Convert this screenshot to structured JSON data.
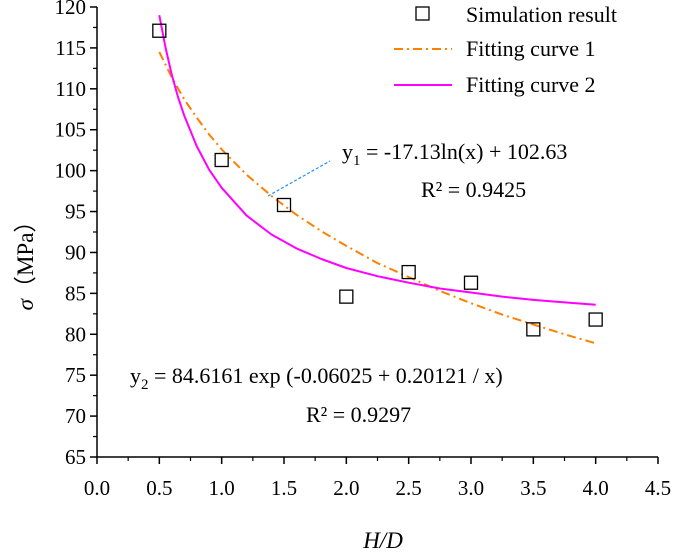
{
  "chart_data": {
    "type": "scatter",
    "title": "",
    "xlabel": "H/D",
    "ylabel": {
      "symbol": "σ",
      "unit": "（MPa）"
    },
    "xlim": [
      0.0,
      4.5
    ],
    "ylim": [
      65,
      120
    ],
    "xticks": [
      "0.0",
      "0.5",
      "1.0",
      "1.5",
      "2.0",
      "2.5",
      "3.0",
      "3.5",
      "4.0",
      "4.5"
    ],
    "yticks": [
      "65",
      "70",
      "75",
      "80",
      "85",
      "90",
      "95",
      "100",
      "105",
      "110",
      "115",
      "120"
    ],
    "grid": false,
    "legend_position": "top-right",
    "series": [
      {
        "name": "Simulation result",
        "kind": "markers",
        "marker": "open-square",
        "color": "#000000",
        "x": [
          0.5,
          1.0,
          1.5,
          2.0,
          2.5,
          3.0,
          3.5,
          4.0
        ],
        "y": [
          117.1,
          101.3,
          95.8,
          84.6,
          87.6,
          86.3,
          80.6,
          81.8
        ]
      },
      {
        "name": "Fitting curve 1",
        "kind": "line",
        "style": "dash-dot",
        "color": "#FF8000",
        "x": [
          0.5,
          0.6,
          0.7,
          0.8,
          0.9,
          1.0,
          1.2,
          1.4,
          1.6,
          1.8,
          2.0,
          2.25,
          2.5,
          2.75,
          3.0,
          3.25,
          3.5,
          3.75,
          4.0
        ],
        "y": [
          114.5,
          111.4,
          108.7,
          106.5,
          104.4,
          102.6,
          99.5,
          96.9,
          94.6,
          92.6,
          90.8,
          88.7,
          87.0,
          85.3,
          83.8,
          82.4,
          81.2,
          80.0,
          78.9
        ]
      },
      {
        "name": "Fitting curve 2",
        "kind": "line",
        "style": "solid",
        "color": "#FF00FF",
        "x": [
          0.5,
          0.55,
          0.6,
          0.65,
          0.7,
          0.8,
          0.9,
          1.0,
          1.2,
          1.4,
          1.6,
          1.8,
          2.0,
          2.25,
          2.5,
          2.75,
          3.0,
          3.25,
          3.5,
          3.75,
          4.0
        ],
        "y": [
          119.0,
          115.0,
          111.7,
          109.0,
          106.7,
          103.0,
          100.1,
          97.9,
          94.5,
          92.2,
          90.5,
          89.2,
          88.1,
          87.1,
          86.3,
          85.6,
          85.1,
          84.6,
          84.2,
          83.9,
          83.6
        ]
      }
    ],
    "annotations": [
      {
        "name": "equation-1",
        "lines": [
          [
            "y",
            "1",
            " = -17.13ln(x) + 102.63"
          ],
          [
            "R² = 0.9425"
          ]
        ],
        "leader_color": "#1E90FF"
      },
      {
        "name": "equation-2",
        "lines": [
          [
            "y",
            "2",
            " = 84.6161 exp (-0.06025 + 0.20121 / x)"
          ],
          [
            "R² = 0.9297"
          ]
        ]
      }
    ]
  }
}
